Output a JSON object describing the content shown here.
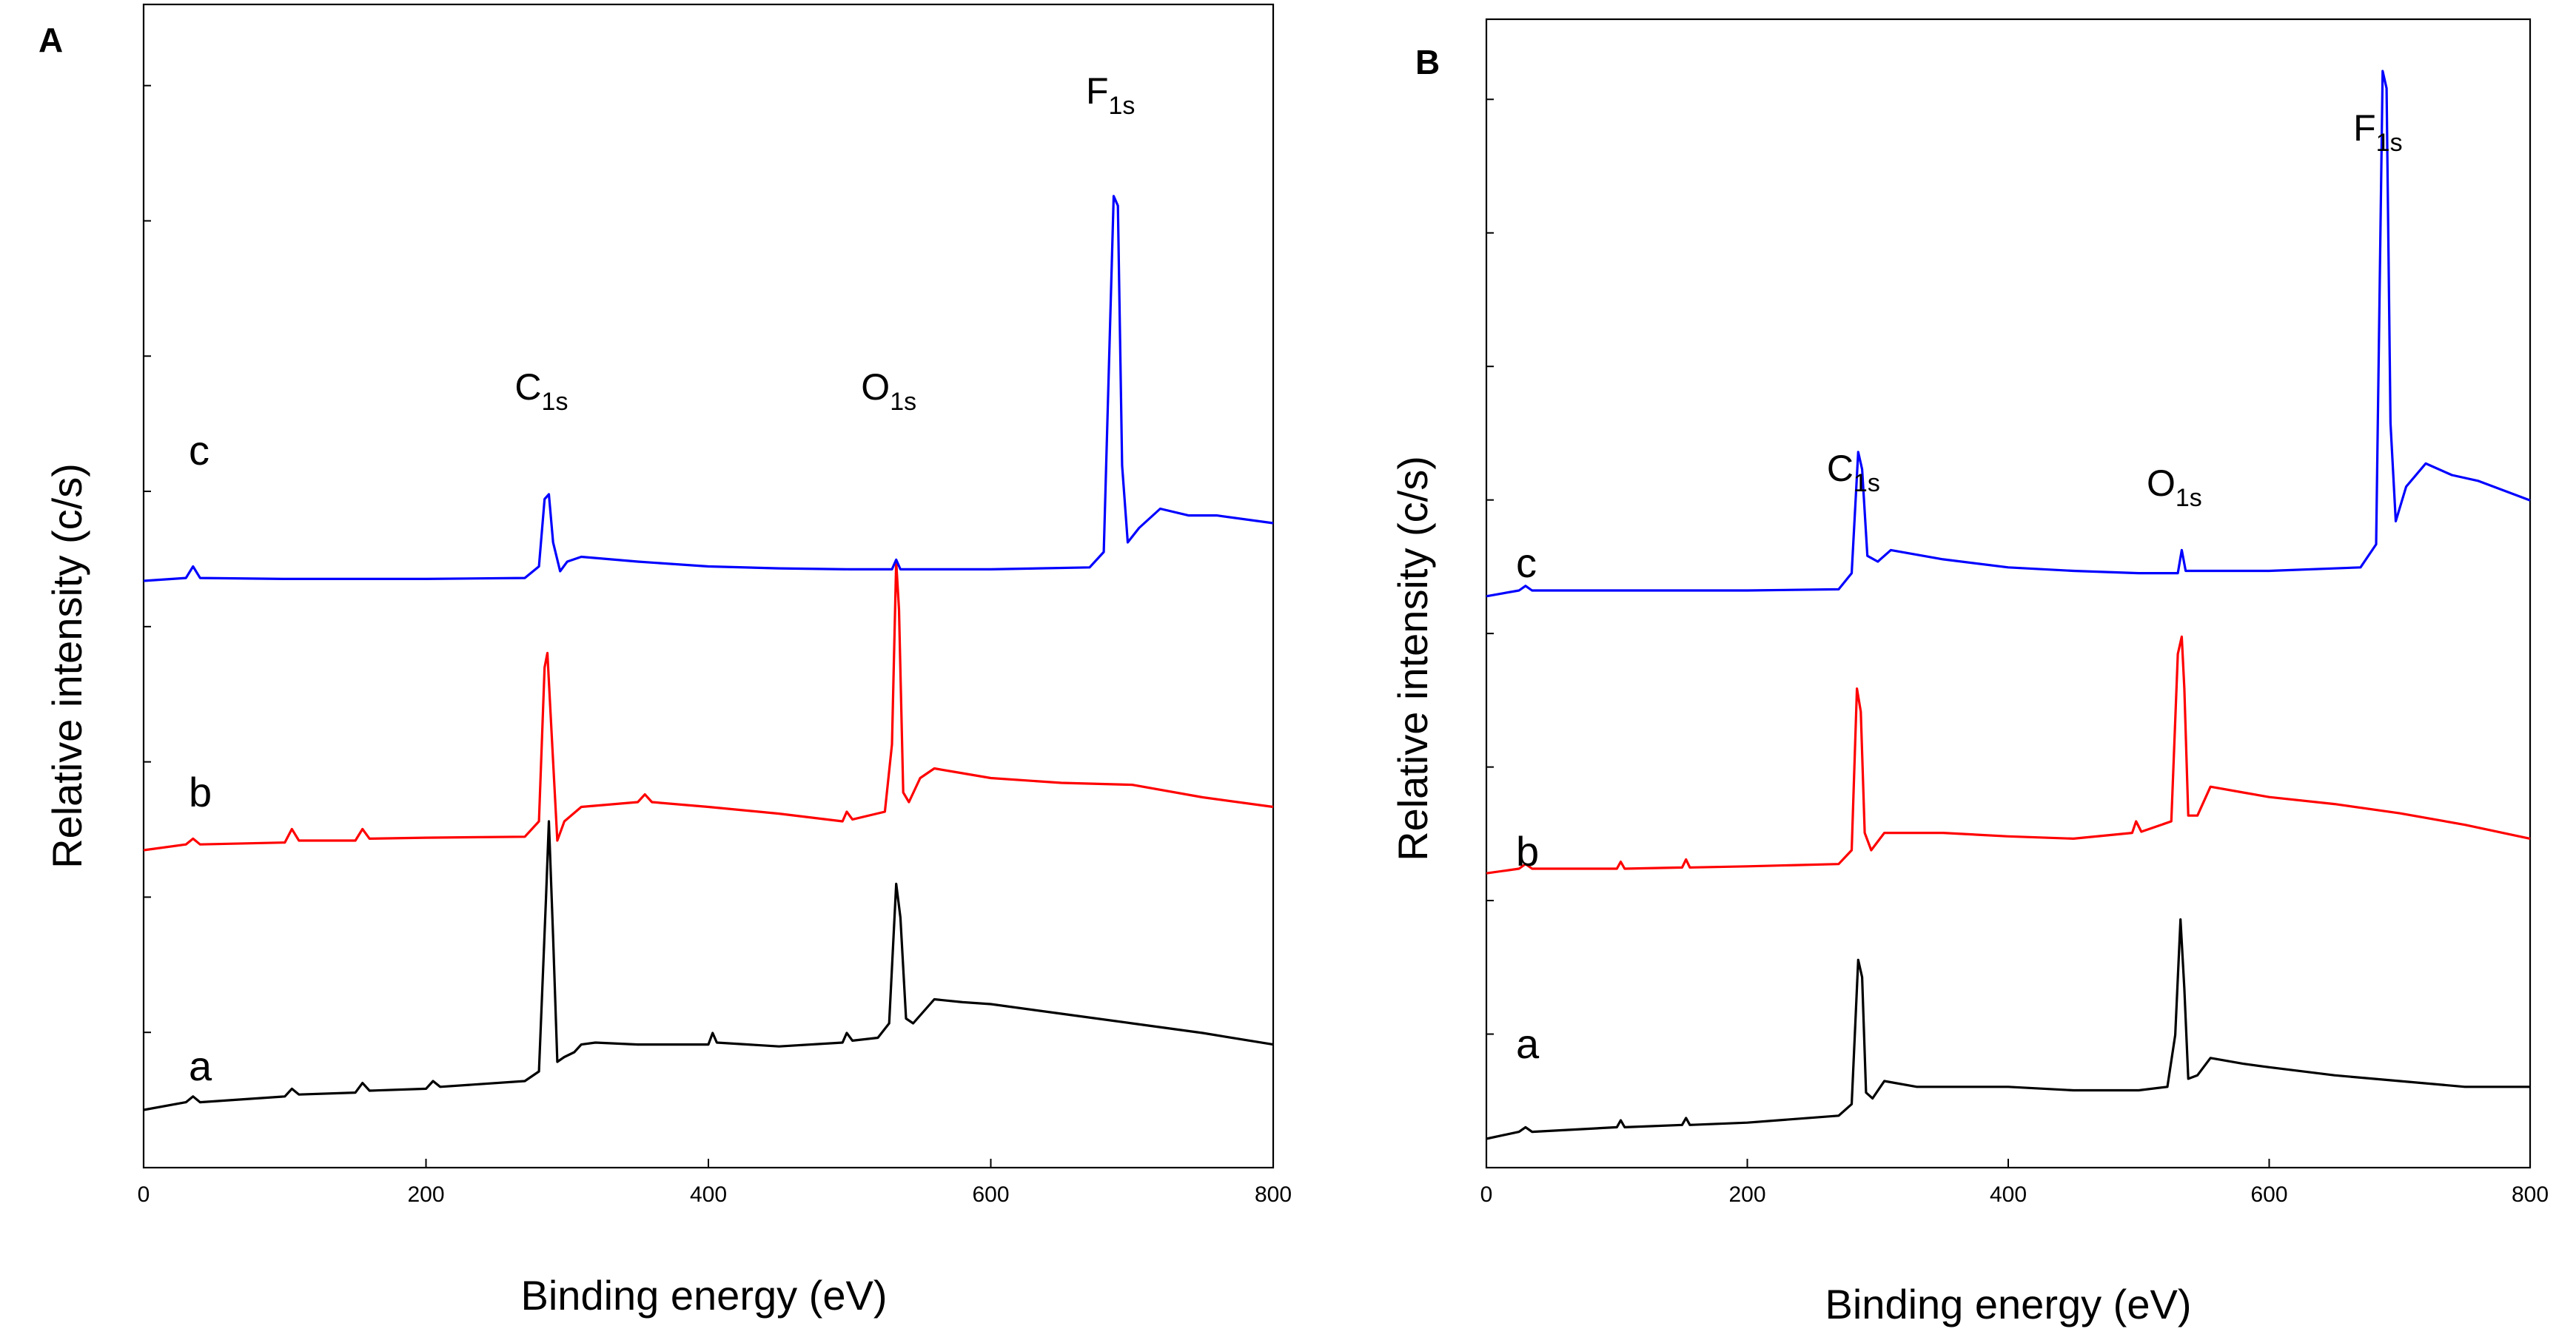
{
  "chart_data": [
    {
      "panel": "A",
      "type": "line",
      "xlabel": "Binding energy (eV)",
      "ylabel": "Relative intensity (c/s)",
      "xlim": [
        0,
        800
      ],
      "xticks": [
        0,
        200,
        400,
        600,
        800
      ],
      "y_tick_marks": 8,
      "series": [
        {
          "name": "a",
          "color": "#000000",
          "baseline": 0.06,
          "points": [
            [
              0,
              0.0
            ],
            [
              30,
              0.008
            ],
            [
              35,
              0.014
            ],
            [
              40,
              0.008
            ],
            [
              100,
              0.014
            ],
            [
              105,
              0.022
            ],
            [
              110,
              0.016
            ],
            [
              150,
              0.018
            ],
            [
              155,
              0.028
            ],
            [
              160,
              0.02
            ],
            [
              200,
              0.022
            ],
            [
              205,
              0.03
            ],
            [
              210,
              0.024
            ],
            [
              270,
              0.03
            ],
            [
              280,
              0.04
            ],
            [
              285,
              0.22
            ],
            [
              287,
              0.3
            ],
            [
              290,
              0.18
            ],
            [
              293,
              0.05
            ],
            [
              298,
              0.055
            ],
            [
              305,
              0.06
            ],
            [
              310,
              0.068
            ],
            [
              320,
              0.07
            ],
            [
              350,
              0.068
            ],
            [
              400,
              0.068
            ],
            [
              403,
              0.08
            ],
            [
              406,
              0.07
            ],
            [
              450,
              0.066
            ],
            [
              495,
              0.07
            ],
            [
              498,
              0.08
            ],
            [
              502,
              0.072
            ],
            [
              520,
              0.075
            ],
            [
              528,
              0.09
            ],
            [
              533,
              0.235
            ],
            [
              536,
              0.2
            ],
            [
              540,
              0.095
            ],
            [
              545,
              0.09
            ],
            [
              560,
              0.115
            ],
            [
              580,
              0.112
            ],
            [
              600,
              0.11
            ],
            [
              650,
              0.1
            ],
            [
              700,
              0.09
            ],
            [
              750,
              0.08
            ],
            [
              800,
              0.068
            ]
          ]
        },
        {
          "name": "b",
          "color": "#ff0000",
          "baseline": 0.33,
          "points": [
            [
              0,
              0.0
            ],
            [
              30,
              0.006
            ],
            [
              35,
              0.012
            ],
            [
              40,
              0.006
            ],
            [
              100,
              0.008
            ],
            [
              105,
              0.022
            ],
            [
              110,
              0.01
            ],
            [
              150,
              0.01
            ],
            [
              155,
              0.022
            ],
            [
              160,
              0.012
            ],
            [
              200,
              0.013
            ],
            [
              270,
              0.014
            ],
            [
              280,
              0.03
            ],
            [
              284,
              0.19
            ],
            [
              286,
              0.205
            ],
            [
              289,
              0.12
            ],
            [
              293,
              0.01
            ],
            [
              298,
              0.03
            ],
            [
              310,
              0.045
            ],
            [
              350,
              0.05
            ],
            [
              355,
              0.058
            ],
            [
              360,
              0.05
            ],
            [
              400,
              0.045
            ],
            [
              450,
              0.038
            ],
            [
              495,
              0.03
            ],
            [
              498,
              0.04
            ],
            [
              502,
              0.032
            ],
            [
              525,
              0.04
            ],
            [
              530,
              0.11
            ],
            [
              533,
              0.3
            ],
            [
              535,
              0.25
            ],
            [
              538,
              0.06
            ],
            [
              542,
              0.05
            ],
            [
              550,
              0.075
            ],
            [
              560,
              0.085
            ],
            [
              580,
              0.08
            ],
            [
              600,
              0.075
            ],
            [
              650,
              0.07
            ],
            [
              700,
              0.068
            ],
            [
              750,
              0.055
            ],
            [
              800,
              0.045
            ]
          ]
        },
        {
          "name": "c",
          "color": "#0000ff",
          "baseline": 0.61,
          "points": [
            [
              0,
              0.0
            ],
            [
              30,
              0.003
            ],
            [
              35,
              0.015
            ],
            [
              40,
              0.003
            ],
            [
              100,
              0.002
            ],
            [
              200,
              0.002
            ],
            [
              270,
              0.003
            ],
            [
              280,
              0.015
            ],
            [
              284,
              0.085
            ],
            [
              287,
              0.09
            ],
            [
              290,
              0.04
            ],
            [
              295,
              0.01
            ],
            [
              300,
              0.02
            ],
            [
              310,
              0.025
            ],
            [
              350,
              0.02
            ],
            [
              400,
              0.015
            ],
            [
              450,
              0.013
            ],
            [
              500,
              0.012
            ],
            [
              530,
              0.012
            ],
            [
              533,
              0.022
            ],
            [
              536,
              0.012
            ],
            [
              600,
              0.012
            ],
            [
              670,
              0.014
            ],
            [
              680,
              0.03
            ],
            [
              687,
              0.4
            ],
            [
              690,
              0.39
            ],
            [
              693,
              0.12
            ],
            [
              697,
              0.04
            ],
            [
              705,
              0.055
            ],
            [
              720,
              0.075
            ],
            [
              740,
              0.068
            ],
            [
              760,
              0.068
            ],
            [
              800,
              0.06
            ]
          ]
        }
      ],
      "curve_labels": [
        "c",
        "b",
        "a"
      ],
      "peak_labels": [
        {
          "element": "C",
          "sub": "1s",
          "x": 287
        },
        {
          "element": "O",
          "sub": "1s",
          "x": 533
        },
        {
          "element": "F",
          "sub": "1s",
          "x": 690
        }
      ]
    },
    {
      "panel": "B",
      "type": "line",
      "xlabel": "Binding energy (eV)",
      "ylabel": "Relative intensity (c/s)",
      "xlim": [
        0,
        800
      ],
      "xticks": [
        0,
        200,
        400,
        600,
        800
      ],
      "y_tick_marks": 8,
      "series": [
        {
          "name": "a",
          "color": "#000000",
          "baseline": 0.025,
          "points": [
            [
              0,
              0.0
            ],
            [
              25,
              0.006
            ],
            [
              30,
              0.01
            ],
            [
              35,
              0.006
            ],
            [
              100,
              0.01
            ],
            [
              103,
              0.016
            ],
            [
              106,
              0.01
            ],
            [
              150,
              0.012
            ],
            [
              153,
              0.018
            ],
            [
              156,
              0.012
            ],
            [
              200,
              0.014
            ],
            [
              270,
              0.02
            ],
            [
              280,
              0.03
            ],
            [
              285,
              0.155
            ],
            [
              288,
              0.14
            ],
            [
              291,
              0.04
            ],
            [
              296,
              0.035
            ],
            [
              305,
              0.05
            ],
            [
              330,
              0.045
            ],
            [
              400,
              0.045
            ],
            [
              450,
              0.042
            ],
            [
              500,
              0.042
            ],
            [
              522,
              0.045
            ],
            [
              528,
              0.09
            ],
            [
              532,
              0.19
            ],
            [
              535,
              0.13
            ],
            [
              538,
              0.052
            ],
            [
              545,
              0.055
            ],
            [
              555,
              0.07
            ],
            [
              580,
              0.065
            ],
            [
              600,
              0.062
            ],
            [
              650,
              0.055
            ],
            [
              700,
              0.05
            ],
            [
              750,
              0.045
            ],
            [
              800,
              0.045
            ]
          ]
        },
        {
          "name": "b",
          "color": "#ff0000",
          "baseline": 0.255,
          "points": [
            [
              0,
              0.0
            ],
            [
              25,
              0.004
            ],
            [
              30,
              0.008
            ],
            [
              35,
              0.004
            ],
            [
              100,
              0.004
            ],
            [
              103,
              0.01
            ],
            [
              106,
              0.004
            ],
            [
              150,
              0.005
            ],
            [
              153,
              0.012
            ],
            [
              156,
              0.005
            ],
            [
              200,
              0.006
            ],
            [
              270,
              0.008
            ],
            [
              280,
              0.02
            ],
            [
              284,
              0.16
            ],
            [
              287,
              0.14
            ],
            [
              290,
              0.035
            ],
            [
              295,
              0.02
            ],
            [
              305,
              0.035
            ],
            [
              350,
              0.035
            ],
            [
              400,
              0.032
            ],
            [
              450,
              0.03
            ],
            [
              495,
              0.035
            ],
            [
              498,
              0.045
            ],
            [
              502,
              0.036
            ],
            [
              525,
              0.045
            ],
            [
              530,
              0.19
            ],
            [
              533,
              0.205
            ],
            [
              535,
              0.16
            ],
            [
              538,
              0.05
            ],
            [
              545,
              0.05
            ],
            [
              555,
              0.075
            ],
            [
              580,
              0.07
            ],
            [
              600,
              0.066
            ],
            [
              650,
              0.06
            ],
            [
              700,
              0.052
            ],
            [
              750,
              0.042
            ],
            [
              800,
              0.03
            ]
          ]
        },
        {
          "name": "c",
          "color": "#0000ff",
          "baseline": 0.495,
          "points": [
            [
              0,
              0.0
            ],
            [
              25,
              0.005
            ],
            [
              30,
              0.009
            ],
            [
              35,
              0.005
            ],
            [
              100,
              0.005
            ],
            [
              200,
              0.005
            ],
            [
              270,
              0.006
            ],
            [
              280,
              0.02
            ],
            [
              285,
              0.125
            ],
            [
              288,
              0.11
            ],
            [
              292,
              0.035
            ],
            [
              300,
              0.03
            ],
            [
              310,
              0.04
            ],
            [
              350,
              0.032
            ],
            [
              400,
              0.025
            ],
            [
              450,
              0.022
            ],
            [
              500,
              0.02
            ],
            [
              530,
              0.02
            ],
            [
              533,
              0.04
            ],
            [
              536,
              0.022
            ],
            [
              600,
              0.022
            ],
            [
              670,
              0.025
            ],
            [
              682,
              0.045
            ],
            [
              687,
              0.455
            ],
            [
              690,
              0.44
            ],
            [
              693,
              0.15
            ],
            [
              697,
              0.065
            ],
            [
              705,
              0.095
            ],
            [
              720,
              0.115
            ],
            [
              740,
              0.105
            ],
            [
              760,
              0.1
            ],
            [
              800,
              0.083
            ]
          ]
        }
      ],
      "curve_labels": [
        "c",
        "b",
        "a"
      ],
      "peak_labels": [
        {
          "element": "C",
          "sub": "1s",
          "x": 287
        },
        {
          "element": "O",
          "sub": "1s",
          "x": 533
        },
        {
          "element": "F",
          "sub": "1s",
          "x": 689
        }
      ]
    }
  ]
}
